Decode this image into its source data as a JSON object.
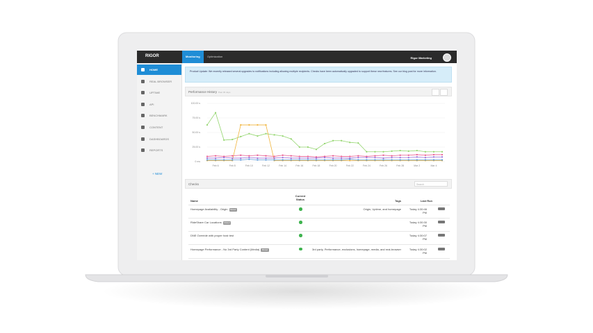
{
  "app": {
    "logo": "RIGOR",
    "tabs": [
      "Monitoring",
      "Optimization"
    ],
    "account": "Rigor Marketing"
  },
  "sidebar": {
    "items": [
      "HOME",
      "REAL BROWSER",
      "UPTIME",
      "API",
      "BENCHMARK",
      "CONTENT",
      "DASHBOARDS",
      "REPORTS"
    ],
    "new_button": "+ NEW"
  },
  "banner": {
    "text": "Product Update: We recently released several upgrades to notifications including allowing multiple recipients. Checks have been automatically upgraded to support these new features. See our blog post for more information."
  },
  "performance": {
    "title": "Performance History",
    "subtitle": "Past 30 days",
    "chart_data": {
      "type": "line",
      "x": [
        "Feb 5",
        "Feb 6",
        "Feb 7",
        "Feb 8",
        "Feb 9",
        "Feb 10",
        "Feb 11",
        "Feb 12",
        "Feb 13",
        "Feb 14",
        "Feb 15",
        "Feb 16",
        "Feb 17",
        "Feb 18",
        "Feb 19",
        "Feb 20",
        "Feb 21",
        "Feb 22",
        "Feb 23",
        "Feb 24",
        "Feb 25",
        "Feb 26",
        "Feb 27",
        "Feb 28",
        "Mar 1",
        "Mar 2",
        "Mar 3",
        "Mar 4",
        "Mar 5"
      ],
      "xticks": [
        "Feb 6",
        "Feb 8",
        "Feb 10",
        "Feb 12",
        "Feb 14",
        "Feb 16",
        "Feb 18",
        "Feb 20",
        "Feb 22",
        "Feb 24",
        "Feb 26",
        "Feb 28",
        "Mar 2",
        "Mar 4"
      ],
      "ylim": [
        0,
        100
      ],
      "yticks": [
        {
          "value": 0,
          "label": "0 ms"
        },
        {
          "value": 25,
          "label": "25.00 s"
        },
        {
          "value": 50,
          "label": "50.00 s"
        },
        {
          "value": 75,
          "label": "75.00 s"
        },
        {
          "value": 100,
          "label": "100.00 s"
        }
      ],
      "grid": true,
      "series": [
        {
          "color": "#93d56e",
          "values": [
            63,
            84,
            37,
            38,
            43,
            48,
            44,
            48,
            46,
            44,
            39,
            25,
            25,
            21,
            31,
            36,
            36,
            33,
            32,
            17,
            17,
            17,
            18,
            19,
            18,
            19,
            17,
            17,
            17
          ]
        },
        {
          "color": "#f0b43c",
          "values": [
            2,
            2,
            2,
            2,
            63,
            63,
            63,
            63,
            2,
            2,
            2,
            2,
            2,
            2,
            2,
            2,
            2,
            2,
            2,
            2,
            2,
            2,
            2,
            2,
            2,
            2,
            2,
            2,
            2
          ]
        },
        {
          "color": "#e8588e",
          "values": [
            9,
            10,
            9,
            10,
            11,
            10,
            11,
            10,
            9,
            11,
            10,
            9,
            9,
            8,
            9,
            10,
            9,
            9,
            10,
            9,
            10,
            11,
            10,
            11,
            11,
            12,
            11,
            12,
            12
          ]
        },
        {
          "color": "#9b6fd8",
          "values": [
            6,
            6,
            7,
            6,
            6,
            7,
            6,
            6,
            6,
            7,
            6,
            6,
            6,
            6,
            7,
            6,
            6,
            6,
            7,
            7,
            7,
            6,
            7,
            7,
            7,
            8,
            7,
            8,
            8
          ]
        },
        {
          "color": "#5b9ad8",
          "values": [
            3,
            3,
            3,
            3,
            3,
            4,
            3,
            3,
            3,
            3,
            3,
            3,
            3,
            3,
            3,
            3,
            3,
            4,
            3,
            3,
            3,
            3,
            3,
            3,
            3,
            3,
            3,
            3,
            3
          ]
        }
      ]
    }
  },
  "checks": {
    "title": "Checks",
    "search": "Search",
    "headers": [
      "Name",
      "Current Status",
      "Tags",
      "Last Run"
    ],
    "rows": [
      {
        "name": "Homepage Availability - Origin",
        "badge": "Muted",
        "tags": "Origin, Uptime, and homepage",
        "last_run": "Today 4:30:46 PM"
      },
      {
        "name": "RideShare Car Locations",
        "badge": "Muted",
        "last_run": "Today 4:30:30 PM"
      },
      {
        "name": "DNE Override with proper host test",
        "last_run": "Today 4:30:07 PM"
      },
      {
        "name": "Homepage Performance - No 3rd Party Content (Media)",
        "badge": "Muted",
        "tags": "3rd party, Performance, exclusions, homepage, media, and real-browser",
        "last_run": "Today 4:30:02 PM"
      }
    ]
  }
}
